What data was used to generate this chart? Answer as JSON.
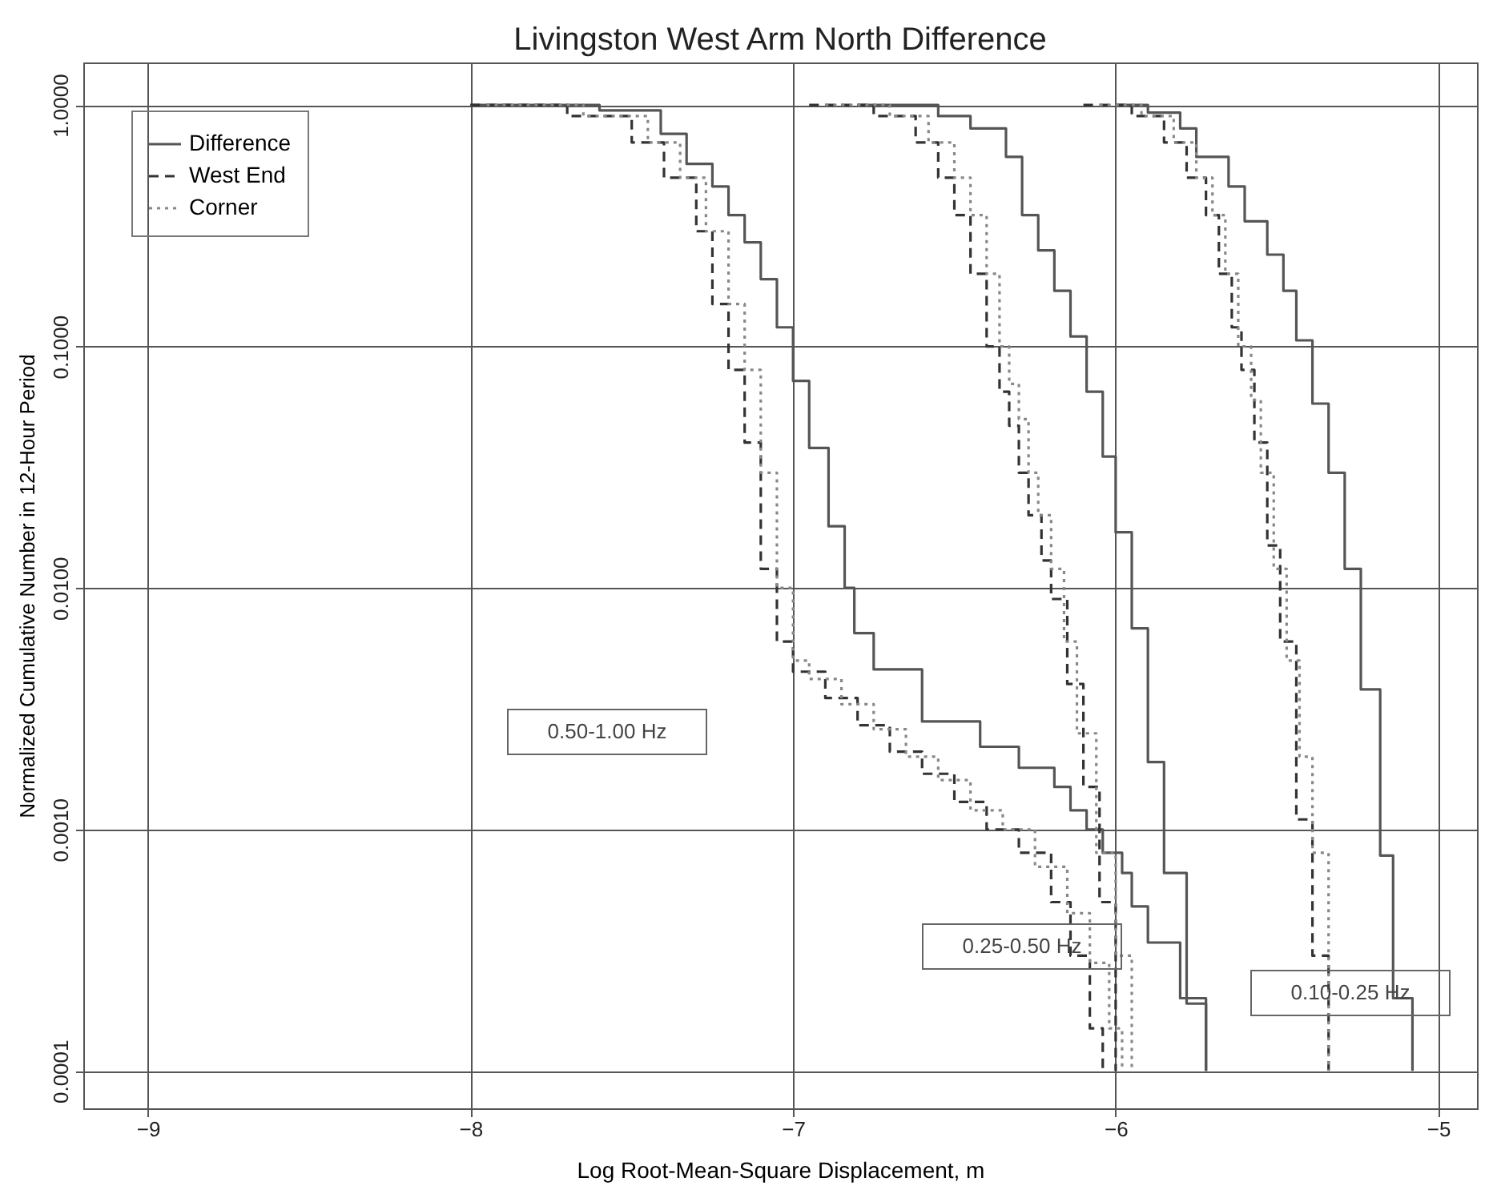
{
  "chart_data": {
    "type": "step",
    "title": "Livingston West Arm North Difference",
    "xlabel": "Log Root-Mean-Square Displacement, m",
    "ylabel": "Normalized Cumulative Number in 12-Hour Period",
    "log": "y",
    "grid": true,
    "legend": "top left",
    "xlim": [
      -9.2,
      -4.88
    ],
    "xticks": [
      -9,
      -8,
      -7,
      -6,
      -5
    ],
    "ylim": [
      7e-05,
      1.5
    ],
    "yticks": [
      {
        "value": 1,
        "label": "1.0000"
      },
      {
        "value": 0.1,
        "label": "0.1000"
      },
      {
        "value": 0.01,
        "label": "0.0100"
      },
      {
        "value": 0.001,
        "label": "0.0010"
      },
      {
        "value": 0.0001,
        "label": "0.0001"
      }
    ],
    "annotations": [
      "0.50-1.00 Hz",
      "0.25-0.50 Hz",
      "0.10-0.25 Hz"
    ],
    "series": [
      {
        "name": "Difference",
        "color": "#555555",
        "line_style": "solid",
        "x": [
          -8.0,
          -7.6,
          -7.41,
          -7.33,
          -7.25,
          -7.2,
          -7.15,
          -7.1,
          -7.05,
          -7.0,
          -6.95,
          -6.89,
          -6.84,
          -6.81,
          -6.75,
          -6.6,
          -6.42,
          -6.3,
          -6.19,
          -6.14,
          -6.09,
          -6.04,
          -5.98,
          -5.95,
          -5.9,
          -5.8,
          -5.72
        ],
        "values": [
          1.0,
          0.95,
          0.76,
          0.57,
          0.46,
          0.35,
          0.27,
          0.19,
          0.12,
          0.072,
          0.038,
          0.018,
          0.01,
          0.0065,
          0.0046,
          0.0028,
          0.0022,
          0.0018,
          0.0015,
          0.0012,
          0.001,
          0.0008,
          0.00066,
          0.00048,
          0.00034,
          0.0002,
          0.0001
        ]
      },
      {
        "name": "West End",
        "color": "#333333",
        "line_style": "dashed",
        "x": [
          -8.0,
          -7.7,
          -7.5,
          -7.4,
          -7.3,
          -7.25,
          -7.2,
          -7.15,
          -7.1,
          -7.05,
          -7.0,
          -6.9,
          -6.8,
          -6.7,
          -6.6,
          -6.5,
          -6.4,
          -6.3,
          -6.2,
          -6.14,
          -6.08,
          -6.04
        ],
        "values": [
          1.0,
          0.9,
          0.7,
          0.5,
          0.3,
          0.15,
          0.08,
          0.04,
          0.012,
          0.006,
          0.0045,
          0.0035,
          0.0027,
          0.0021,
          0.0017,
          0.0013,
          0.001,
          0.0008,
          0.0005,
          0.0003,
          0.00015,
          0.0001
        ]
      },
      {
        "name": "Corner",
        "color": "#888888",
        "line_style": "dotted",
        "x": [
          -7.95,
          -7.65,
          -7.45,
          -7.35,
          -7.27,
          -7.2,
          -7.15,
          -7.1,
          -7.05,
          -7.0,
          -6.95,
          -6.85,
          -6.75,
          -6.65,
          -6.55,
          -6.45,
          -6.35,
          -6.25,
          -6.15,
          -6.08,
          -6.02,
          -5.98
        ],
        "values": [
          1.0,
          0.9,
          0.7,
          0.5,
          0.3,
          0.15,
          0.08,
          0.03,
          0.01,
          0.005,
          0.0042,
          0.0033,
          0.0026,
          0.002,
          0.0016,
          0.0012,
          0.001,
          0.0007,
          0.00045,
          0.00028,
          0.00015,
          0.0001
        ]
      },
      {
        "color": "#555555",
        "line_style": "solid",
        "x": [
          -6.8,
          -6.55,
          -6.45,
          -6.34,
          -6.29,
          -6.24,
          -6.19,
          -6.14,
          -6.09,
          -6.04,
          -6.0,
          -5.95,
          -5.9,
          -5.85,
          -5.78,
          -5.72
        ],
        "values": [
          1.0,
          0.9,
          0.8,
          0.61,
          0.35,
          0.25,
          0.17,
          0.11,
          0.065,
          0.035,
          0.017,
          0.0068,
          0.0019,
          0.00066,
          0.00019,
          0.0001
        ]
      },
      {
        "color": "#333333",
        "line_style": "dashed",
        "x": [
          -6.95,
          -6.75,
          -6.62,
          -6.55,
          -6.5,
          -6.45,
          -6.4,
          -6.36,
          -6.33,
          -6.3,
          -6.27,
          -6.23,
          -6.2,
          -6.15,
          -6.1,
          -6.05,
          -6.0
        ],
        "values": [
          1.0,
          0.9,
          0.7,
          0.5,
          0.35,
          0.2,
          0.1,
          0.065,
          0.047,
          0.03,
          0.02,
          0.013,
          0.009,
          0.004,
          0.0015,
          0.0005,
          0.0001
        ]
      },
      {
        "color": "#888888",
        "line_style": "dotted",
        "x": [
          -6.9,
          -6.7,
          -6.58,
          -6.5,
          -6.45,
          -6.4,
          -6.36,
          -6.33,
          -6.3,
          -6.27,
          -6.24,
          -6.2,
          -6.16,
          -6.12,
          -6.06,
          -6.0,
          -5.95
        ],
        "values": [
          1.0,
          0.9,
          0.7,
          0.5,
          0.35,
          0.2,
          0.1,
          0.07,
          0.05,
          0.03,
          0.02,
          0.012,
          0.006,
          0.0025,
          0.0008,
          0.0003,
          0.0001
        ]
      },
      {
        "color": "#555555",
        "line_style": "solid",
        "x": [
          -6.0,
          -5.9,
          -5.8,
          -5.75,
          -5.65,
          -5.6,
          -5.53,
          -5.48,
          -5.44,
          -5.39,
          -5.34,
          -5.29,
          -5.24,
          -5.18,
          -5.14,
          -5.08
        ],
        "values": [
          1.0,
          0.93,
          0.8,
          0.61,
          0.46,
          0.33,
          0.24,
          0.17,
          0.106,
          0.058,
          0.03,
          0.012,
          0.0038,
          0.00078,
          0.0002,
          0.0001
        ]
      },
      {
        "color": "#333333",
        "line_style": "dashed",
        "x": [
          -6.1,
          -5.95,
          -5.85,
          -5.78,
          -5.72,
          -5.68,
          -5.64,
          -5.61,
          -5.57,
          -5.53,
          -5.49,
          -5.44,
          -5.39,
          -5.34
        ],
        "values": [
          1.0,
          0.9,
          0.7,
          0.5,
          0.35,
          0.2,
          0.12,
          0.08,
          0.04,
          0.015,
          0.006,
          0.0011,
          0.0003,
          0.0001
        ]
      },
      {
        "color": "#888888",
        "line_style": "dotted",
        "x": [
          -6.05,
          -5.92,
          -5.82,
          -5.75,
          -5.7,
          -5.66,
          -5.62,
          -5.58,
          -5.55,
          -5.51,
          -5.47,
          -5.43,
          -5.39,
          -5.34
        ],
        "values": [
          1.0,
          0.9,
          0.7,
          0.5,
          0.35,
          0.2,
          0.1,
          0.06,
          0.03,
          0.012,
          0.005,
          0.002,
          0.0008,
          0.0001
        ]
      }
    ]
  }
}
